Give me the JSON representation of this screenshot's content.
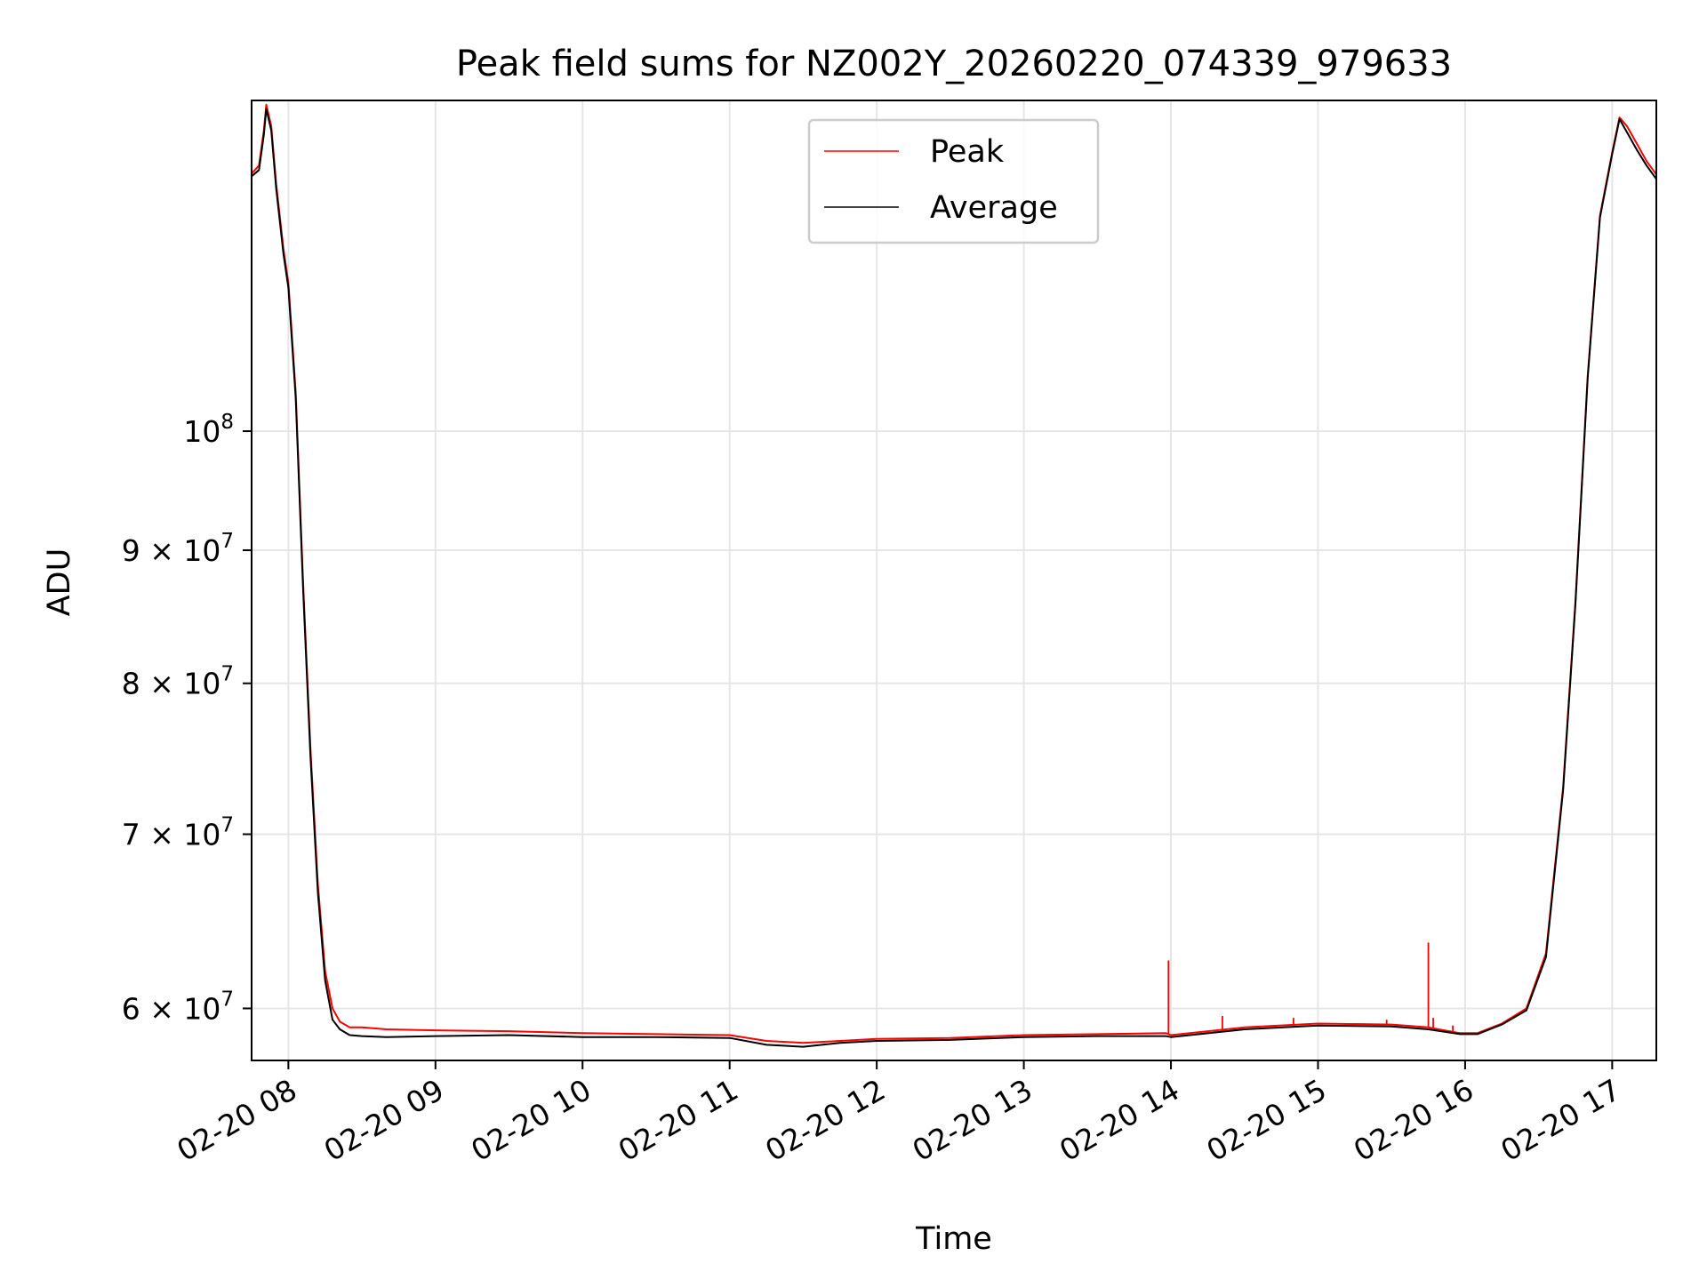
{
  "chart_data": {
    "type": "line",
    "title": "Peak field sums for NZ002Y_20260220_074339_979633",
    "xlabel": "Time",
    "ylabel": "ADU",
    "y_scale": "log",
    "ylim": [
      57300000,
      134000000
    ],
    "xlim": [
      "2026-02-20 07:45",
      "2026-02-20 17:18"
    ],
    "grid": true,
    "legend_position": "top-center",
    "colors": {
      "peak": "#ff0000",
      "average": "#000000"
    },
    "x_ticks": [
      {
        "time": "2026-02-20 08:00",
        "label": "02-20 08"
      },
      {
        "time": "2026-02-20 09:00",
        "label": "02-20 09"
      },
      {
        "time": "2026-02-20 10:00",
        "label": "02-20 10"
      },
      {
        "time": "2026-02-20 11:00",
        "label": "02-20 11"
      },
      {
        "time": "2026-02-20 12:00",
        "label": "02-20 12"
      },
      {
        "time": "2026-02-20 13:00",
        "label": "02-20 13"
      },
      {
        "time": "2026-02-20 14:00",
        "label": "02-20 14"
      },
      {
        "time": "2026-02-20 15:00",
        "label": "02-20 15"
      },
      {
        "time": "2026-02-20 16:00",
        "label": "02-20 16"
      },
      {
        "time": "2026-02-20 17:00",
        "label": "02-20 17"
      }
    ],
    "y_ticks": [
      {
        "value": 60000000,
        "mantissa": "6",
        "exponent": "7",
        "label": "6 × 10^7"
      },
      {
        "value": 70000000,
        "mantissa": "7",
        "exponent": "7",
        "label": "7 × 10^7"
      },
      {
        "value": 80000000,
        "mantissa": "8",
        "exponent": "7",
        "label": "8 × 10^7"
      },
      {
        "value": 90000000,
        "mantissa": "9",
        "exponent": "7",
        "label": "9 × 10^7"
      },
      {
        "value": 100000000,
        "mantissa": "",
        "exponent": "8",
        "label": "10^8"
      }
    ],
    "series": [
      {
        "name": "Peak",
        "x": [
          "2026-02-20 07:45",
          "2026-02-20 07:48",
          "2026-02-20 07:50",
          "2026-02-20 07:51",
          "2026-02-20 07:53",
          "2026-02-20 07:55",
          "2026-02-20 07:58",
          "2026-02-20 08:00",
          "2026-02-20 08:03",
          "2026-02-20 08:06",
          "2026-02-20 08:09",
          "2026-02-20 08:12",
          "2026-02-20 08:15",
          "2026-02-20 08:18",
          "2026-02-20 08:21",
          "2026-02-20 08:25",
          "2026-02-20 08:30",
          "2026-02-20 08:40",
          "2026-02-20 09:00",
          "2026-02-20 09:30",
          "2026-02-20 10:00",
          "2026-02-20 10:30",
          "2026-02-20 11:00",
          "2026-02-20 11:15",
          "2026-02-20 11:30",
          "2026-02-20 11:45",
          "2026-02-20 12:00",
          "2026-02-20 12:30",
          "2026-02-20 13:00",
          "2026-02-20 13:30",
          "2026-02-20 13:58",
          "2026-02-20 14:00",
          "2026-02-20 14:30",
          "2026-02-20 15:00",
          "2026-02-20 15:30",
          "2026-02-20 15:45",
          "2026-02-20 15:58",
          "2026-02-20 16:05",
          "2026-02-20 16:15",
          "2026-02-20 16:25",
          "2026-02-20 16:33",
          "2026-02-20 16:40",
          "2026-02-20 16:45",
          "2026-02-20 16:50",
          "2026-02-20 16:55",
          "2026-02-20 17:00",
          "2026-02-20 17:03",
          "2026-02-20 17:06",
          "2026-02-20 17:10",
          "2026-02-20 17:14",
          "2026-02-20 17:18"
        ],
        "values": [
          125600000,
          126500000,
          130500000,
          133500000,
          131000000,
          124500000,
          117500000,
          114000000,
          103500000,
          87500000,
          75500000,
          67000000,
          62000000,
          60000000,
          59300000,
          59000000,
          59000000,
          58900000,
          58850000,
          58800000,
          58700000,
          58650000,
          58600000,
          58300000,
          58200000,
          58300000,
          58400000,
          58450000,
          58600000,
          58650000,
          58700000,
          58600000,
          59000000,
          59200000,
          59150000,
          59000000,
          58700000,
          58700000,
          59200000,
          60000000,
          63000000,
          73000000,
          86000000,
          105000000,
          121000000,
          128000000,
          132000000,
          131000000,
          129000000,
          127000000,
          125500000
        ],
        "spikes": [
          {
            "x": "2026-02-20 13:59",
            "value": 62600000
          },
          {
            "x": "2026-02-20 14:21",
            "value": 59600000
          },
          {
            "x": "2026-02-20 14:50",
            "value": 59500000
          },
          {
            "x": "2026-02-20 15:28",
            "value": 59400000
          },
          {
            "x": "2026-02-20 15:45",
            "value": 63600000
          },
          {
            "x": "2026-02-20 15:47",
            "value": 59500000
          },
          {
            "x": "2026-02-20 15:55",
            "value": 59100000
          }
        ]
      },
      {
        "name": "Average",
        "x": [
          "2026-02-20 07:45",
          "2026-02-20 07:48",
          "2026-02-20 07:50",
          "2026-02-20 07:51",
          "2026-02-20 07:53",
          "2026-02-20 07:55",
          "2026-02-20 07:58",
          "2026-02-20 08:00",
          "2026-02-20 08:03",
          "2026-02-20 08:06",
          "2026-02-20 08:09",
          "2026-02-20 08:12",
          "2026-02-20 08:15",
          "2026-02-20 08:18",
          "2026-02-20 08:21",
          "2026-02-20 08:25",
          "2026-02-20 08:30",
          "2026-02-20 08:40",
          "2026-02-20 09:00",
          "2026-02-20 09:30",
          "2026-02-20 10:00",
          "2026-02-20 10:30",
          "2026-02-20 11:00",
          "2026-02-20 11:15",
          "2026-02-20 11:30",
          "2026-02-20 11:45",
          "2026-02-20 12:00",
          "2026-02-20 12:30",
          "2026-02-20 13:00",
          "2026-02-20 13:30",
          "2026-02-20 13:58",
          "2026-02-20 14:00",
          "2026-02-20 14:30",
          "2026-02-20 15:00",
          "2026-02-20 15:30",
          "2026-02-20 15:45",
          "2026-02-20 15:58",
          "2026-02-20 16:05",
          "2026-02-20 16:15",
          "2026-02-20 16:25",
          "2026-02-20 16:33",
          "2026-02-20 16:40",
          "2026-02-20 16:45",
          "2026-02-20 16:50",
          "2026-02-20 16:55",
          "2026-02-20 17:00",
          "2026-02-20 17:03",
          "2026-02-20 17:06",
          "2026-02-20 17:10",
          "2026-02-20 17:14",
          "2026-02-20 17:18"
        ],
        "values": [
          125300000,
          126000000,
          130000000,
          133000000,
          130500000,
          124000000,
          117000000,
          113500000,
          103000000,
          87000000,
          75000000,
          66500000,
          61500000,
          59400000,
          58900000,
          58600000,
          58550000,
          58500000,
          58550000,
          58600000,
          58500000,
          58500000,
          58450000,
          58100000,
          58000000,
          58200000,
          58300000,
          58350000,
          58500000,
          58550000,
          58550000,
          58500000,
          58900000,
          59100000,
          59050000,
          58900000,
          58650000,
          58650000,
          59150000,
          59900000,
          62800000,
          72800000,
          85800000,
          104800000,
          120800000,
          127800000,
          131800000,
          130300000,
          128300000,
          126500000,
          125000000
        ],
        "spikes": []
      }
    ]
  }
}
